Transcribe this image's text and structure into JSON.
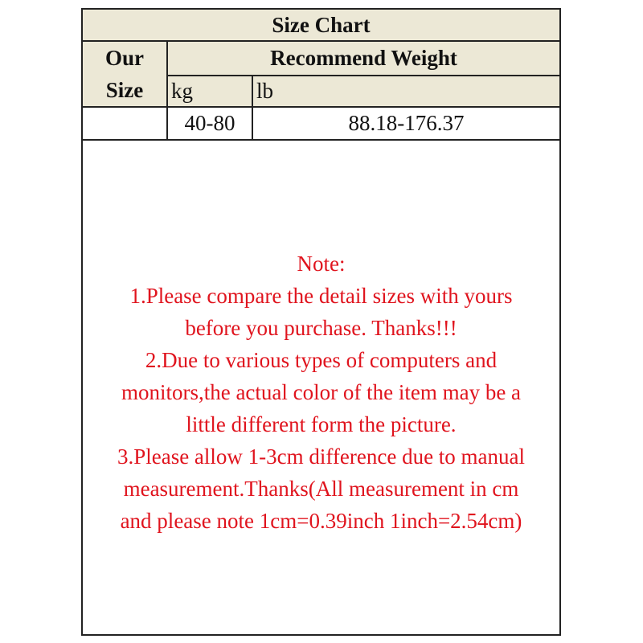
{
  "table": {
    "title": "Size Chart",
    "size_header": [
      "Our",
      "Size"
    ],
    "weight_header": "Recommend Weight",
    "unit_kg": "kg",
    "unit_lb": "lb",
    "rows": [
      {
        "size": "",
        "kg": "40-80",
        "lb": "88.18-176.37"
      }
    ]
  },
  "note": {
    "lines": [
      "Note:",
      "1.Please compare the detail sizes with yours",
      "before you purchase. Thanks!!!",
      "2.Due to various types of computers and",
      "monitors,the actual color of the item may be a",
      "little different form the picture.",
      "3.Please allow 1-3cm difference due to manual",
      "measurement.Thanks(All measurement in cm",
      "and please note 1cm=0.39inch 1inch=2.54cm)"
    ]
  },
  "colors": {
    "header_bg": "#ECE8D6",
    "note_text": "#e0141e",
    "border": "#222222"
  }
}
